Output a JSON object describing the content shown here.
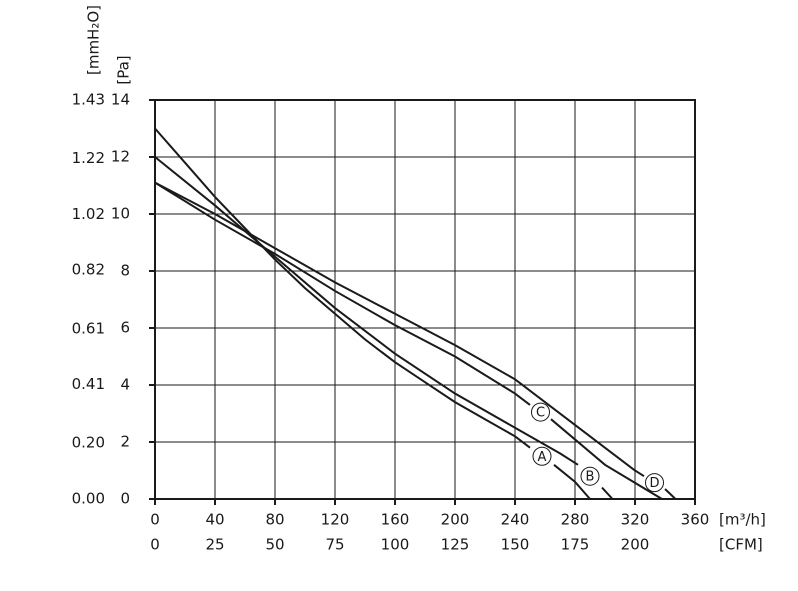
{
  "chart_data": {
    "type": "line",
    "xlabel": "[m³/h]",
    "x2label": "[CFM]",
    "ylabel": "[Pa]",
    "y2label": "[mmH₂O]",
    "xlim": [
      0,
      360
    ],
    "xticks": [
      0,
      40,
      80,
      120,
      160,
      200,
      240,
      280,
      320,
      360
    ],
    "x2tick_labels": [
      "0",
      "25",
      "50",
      "75",
      "100",
      "125",
      "150",
      "175",
      "200"
    ],
    "ylim": [
      0,
      14
    ],
    "yticks": [
      0,
      2,
      4,
      6,
      8,
      10,
      12,
      14
    ],
    "y2lim": [
      0,
      1.43
    ],
    "y2ticks": [
      {
        "value": 0,
        "label": "0.00"
      },
      {
        "value": 0.2,
        "label": "0.20"
      },
      0.41,
      0.61,
      0.82,
      1.02,
      1.22,
      1.43
    ],
    "grid": true,
    "series": [
      {
        "name": "A",
        "color": "#1a1a1a",
        "x": [
          0,
          20,
          40,
          60,
          80,
          100,
          120,
          140,
          160,
          180,
          200,
          220,
          240,
          250,
          258,
          266,
          280,
          290
        ],
        "values": [
          13,
          11.8,
          10.6,
          9.5,
          8.4,
          7.4,
          6.5,
          5.6,
          4.8,
          4.1,
          3.4,
          2.8,
          2.2,
          1.8,
          null,
          1.2,
          0.6,
          0
        ]
      },
      {
        "name": "B",
        "color": "#1a1a1a",
        "x": [
          0,
          40,
          80,
          120,
          160,
          200,
          240,
          270,
          282,
          290,
          298,
          305
        ],
        "values": [
          12,
          10.3,
          8.5,
          6.7,
          5.1,
          3.7,
          2.5,
          1.6,
          1.2,
          null,
          0.4,
          0
        ]
      },
      {
        "name": "C",
        "color": "#1a1a1a",
        "x": [
          0,
          40,
          80,
          120,
          160,
          200,
          240,
          250,
          257,
          264,
          300,
          330,
          338
        ],
        "values": [
          11.1,
          9.8,
          8.6,
          7.3,
          6.1,
          5.0,
          3.7,
          3.3,
          null,
          2.8,
          1.2,
          0.25,
          0
        ]
      },
      {
        "name": "D",
        "color": "#1a1a1a",
        "x": [
          0,
          40,
          80,
          120,
          160,
          200,
          240,
          280,
          320,
          326,
          334,
          340,
          347
        ],
        "values": [
          11.1,
          10.0,
          8.8,
          7.6,
          6.5,
          5.4,
          4.2,
          2.6,
          1.0,
          0.8,
          null,
          0.35,
          0
        ]
      }
    ]
  }
}
